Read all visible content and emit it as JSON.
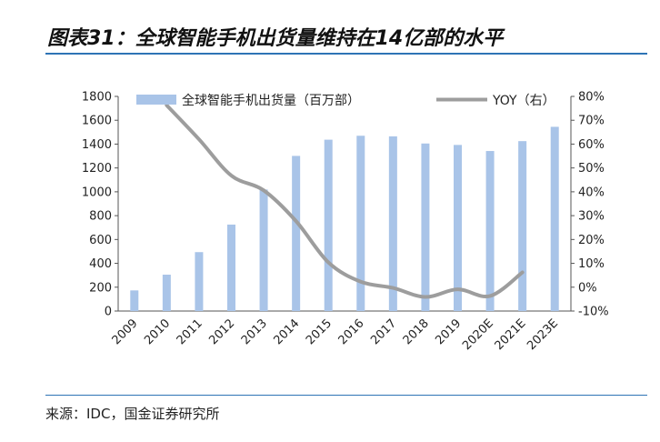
{
  "header": {
    "title": "图表31：全球智能手机出货量维持在14亿部的水平"
  },
  "footer": {
    "source": "来源：IDC，国金证券研究所"
  },
  "chart_data": {
    "type": "bar",
    "categories": [
      "2009",
      "2010",
      "2011",
      "2012",
      "2013",
      "2014",
      "2015",
      "2016",
      "2017",
      "2018",
      "2019",
      "2020E",
      "2021E",
      "2023E"
    ],
    "series": [
      {
        "name": "全球智能手机出货量（百万部）",
        "type": "bar",
        "axis": "left",
        "values": [
          173,
          305,
          494,
          725,
          1019,
          1301,
          1437,
          1470,
          1465,
          1405,
          1393,
          1342,
          1425,
          1545
        ]
      },
      {
        "name": "YOY（右）",
        "type": "line",
        "axis": "right",
        "values": [
          null,
          76.3,
          62.0,
          46.8,
          40.6,
          27.7,
          10.4,
          2.3,
          -0.3,
          -4.1,
          -0.9,
          -3.7,
          6.2,
          null
        ]
      }
    ],
    "y_left": {
      "min": 0,
      "max": 1800,
      "step": 200,
      "ticks": [
        "0",
        "200",
        "400",
        "600",
        "800",
        "1000",
        "1200",
        "1400",
        "1600",
        "1800"
      ]
    },
    "y_right": {
      "min": -10,
      "max": 80,
      "step": 10,
      "ticks": [
        "-10%",
        "0%",
        "10%",
        "20%",
        "30%",
        "40%",
        "50%",
        "60%",
        "70%",
        "80%"
      ]
    },
    "legend_position": "top",
    "grid": false,
    "colors": {
      "bar": "#a9c4e8",
      "line": "#9d9d9d",
      "accent": "#2e74b5"
    }
  }
}
